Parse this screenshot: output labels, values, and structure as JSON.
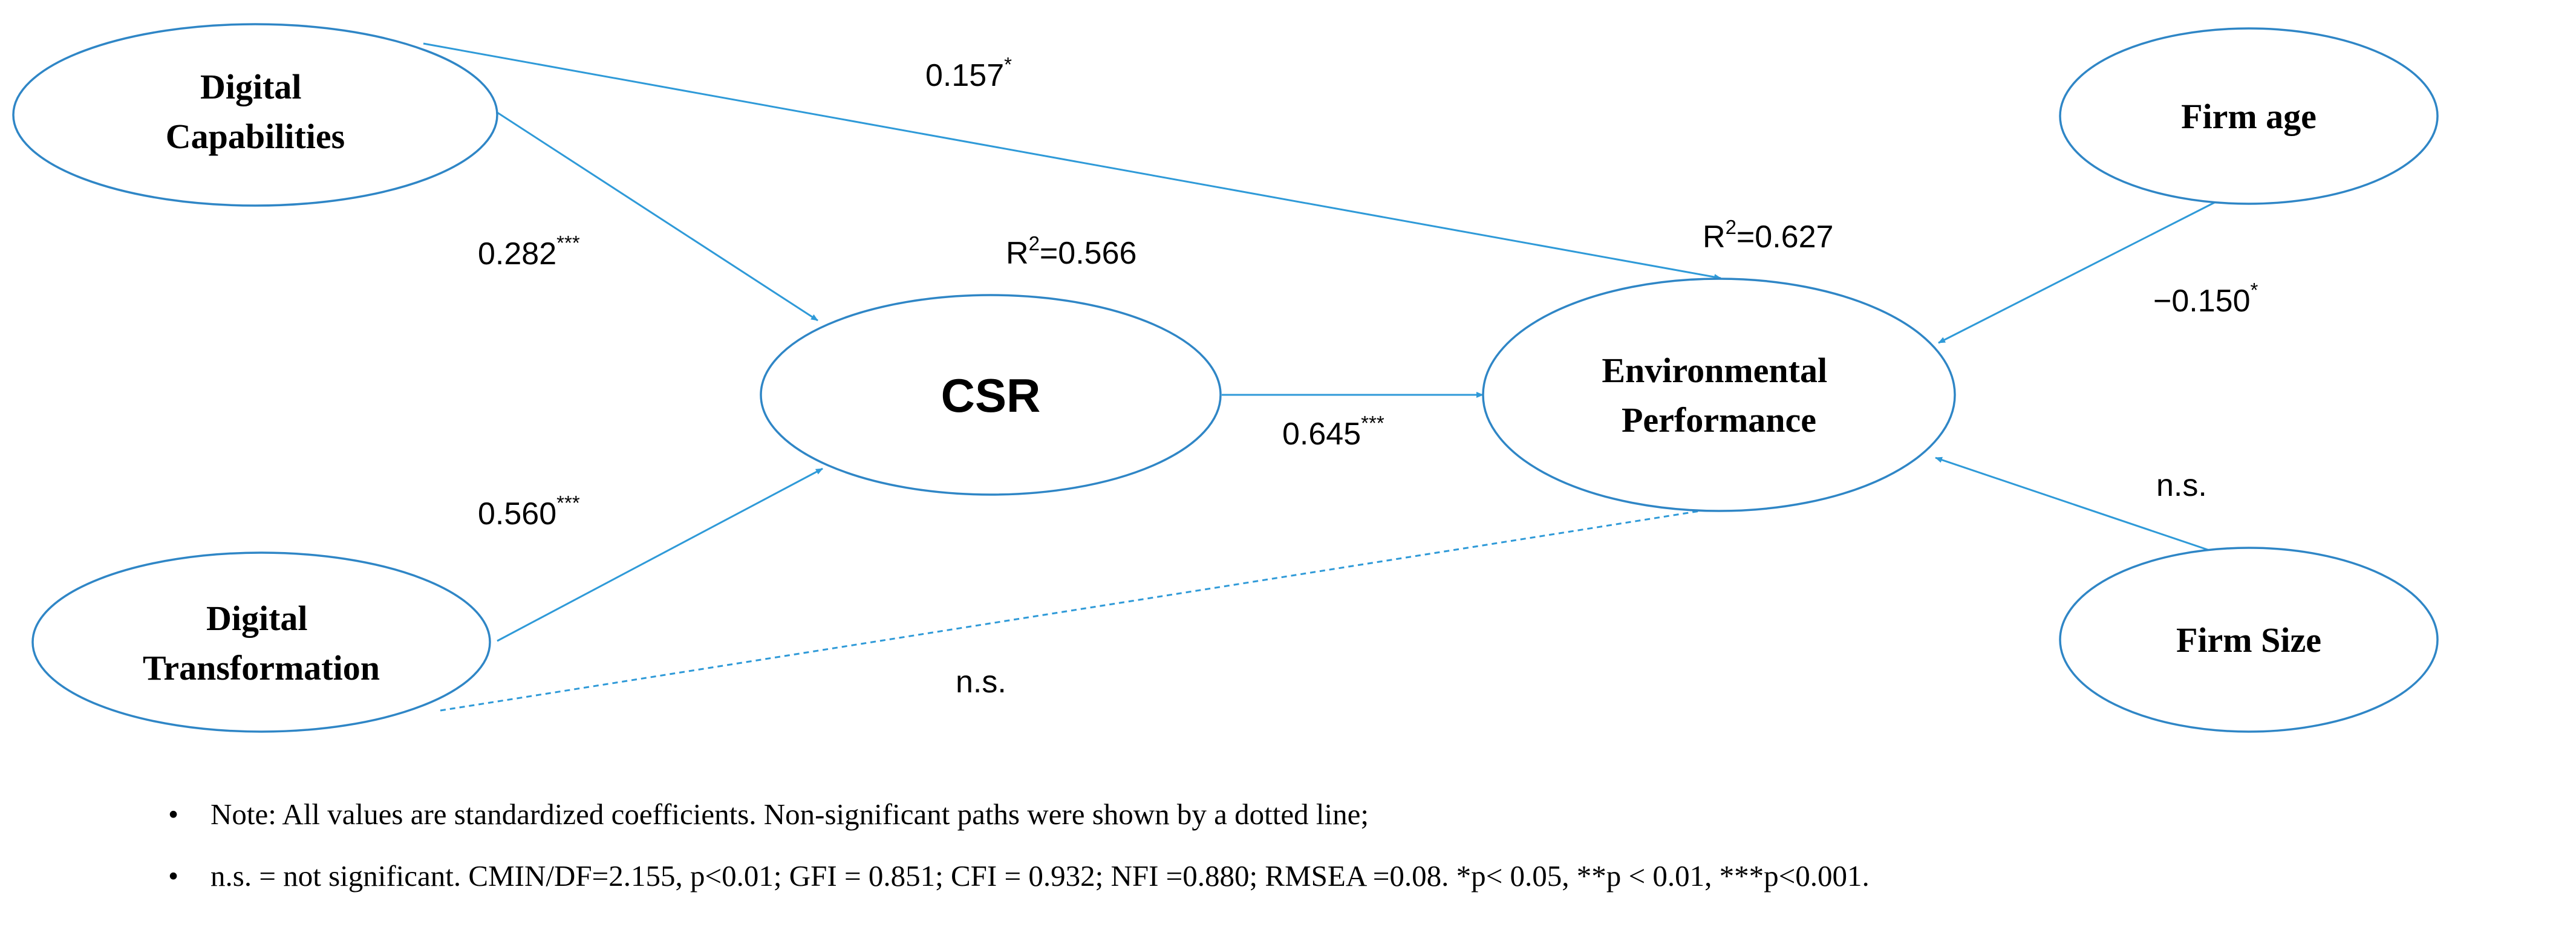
{
  "nodes": {
    "digital_capabilities": {
      "lines": [
        "Digital",
        "Capabilities"
      ]
    },
    "digital_transformation": {
      "lines": [
        "Digital",
        "Transformation"
      ]
    },
    "csr": {
      "lines": [
        "CSR"
      ]
    },
    "environmental_performance": {
      "lines": [
        "Environmental",
        "Performance"
      ]
    },
    "firm_age": {
      "lines": [
        "Firm age"
      ]
    },
    "firm_size": {
      "lines": [
        "Firm Size"
      ]
    }
  },
  "paths": {
    "dc_to_ep": {
      "value": "0.157",
      "sig": "*",
      "significant": true
    },
    "dc_to_csr": {
      "value": "0.282",
      "sig": "***",
      "significant": true
    },
    "dt_to_csr": {
      "value": "0.560",
      "sig": "***",
      "significant": true
    },
    "csr_to_ep": {
      "value": "0.645",
      "sig": "***",
      "significant": true
    },
    "dt_to_ep": {
      "value": "n.s.",
      "sig": "",
      "significant": false
    },
    "age_to_ep": {
      "value": "−0.150",
      "sig": "*",
      "significant": true
    },
    "size_to_ep": {
      "value": "n.s.",
      "sig": "",
      "significant": false
    }
  },
  "r_squared": {
    "csr": {
      "prefix": "R",
      "exp": "2",
      "value": "=0.566"
    },
    "ep": {
      "prefix": "R",
      "exp": "2",
      "value": "=0.627"
    }
  },
  "notes": {
    "bullet": "•",
    "lines": [
      "Note: All values are standardized coefficients. Non-significant paths were shown by a dotted line;",
      "n.s. = not significant. CMIN/DF=2.155, p<0.01; GFI = 0.851; CFI = 0.932; NFI =0.880; RMSEA =0.08. *p< 0.05, **p < 0.01, ***p<0.001."
    ]
  },
  "colors": {
    "edge": "#2f9ad8",
    "node_border": "#2f86c6"
  }
}
